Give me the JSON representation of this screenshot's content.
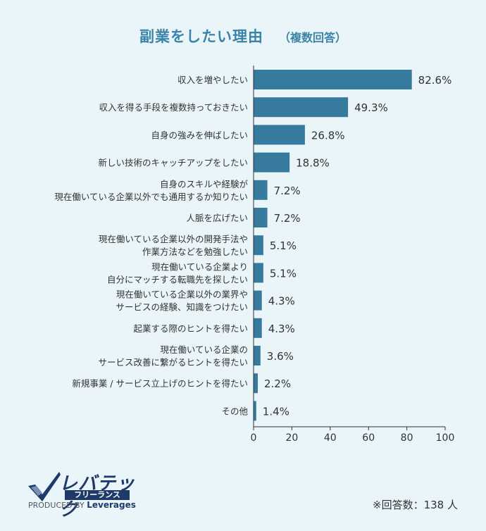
{
  "header": {
    "title": "副業をしたい理由",
    "subtitle": "（複数回答）"
  },
  "chart_data": {
    "type": "bar",
    "orientation": "horizontal",
    "title": "副業をしたい理由",
    "subtitle": "（複数回答）",
    "xlim": [
      0,
      100
    ],
    "xticks": [
      "0",
      "20",
      "40",
      "60",
      "80",
      "100"
    ],
    "grid": false,
    "bar_color": "#367a9e",
    "categories": [
      [
        "収入を増やしたい"
      ],
      [
        "収入を得る手段を複数持っておきたい"
      ],
      [
        "自身の強みを伸ばしたい"
      ],
      [
        "新しい技術のキャッチアップをしたい"
      ],
      [
        "自身のスキルや経験が",
        "現在働いている企業以外でも通用するか知りたい"
      ],
      [
        "人脈を広げたい"
      ],
      [
        "現在働いている企業以外の開発手法や",
        "作業方法などを勉強したい"
      ],
      [
        "現在働いている企業より",
        "自分にマッチする転職先を探したい"
      ],
      [
        "現在働いている企業以外の業界や",
        "サービスの経験、知識をつけたい"
      ],
      [
        "起業する際のヒントを得たい"
      ],
      [
        "現在働いている企業の",
        "サービス改善に繋がるヒントを得たい"
      ],
      [
        "新規事業 / サービス立上げのヒントを得たい"
      ],
      [
        "その他"
      ]
    ],
    "values": [
      82.6,
      49.3,
      26.8,
      18.8,
      7.2,
      7.2,
      5.1,
      5.1,
      4.3,
      4.3,
      3.6,
      2.2,
      1.4
    ],
    "value_labels": [
      "82.6%",
      "49.3%",
      "26.8%",
      "18.8%",
      "7.2%",
      "7.2%",
      "5.1%",
      "5.1%",
      "4.3%",
      "4.3%",
      "3.6%",
      "2.2%",
      "1.4%"
    ]
  },
  "footer": {
    "logo_main": "レバテック",
    "logo_sub": "フリーランス",
    "produced_by": "PRODUCED BY",
    "brand": "Leverages",
    "respondents": "※回答数：138 人"
  }
}
